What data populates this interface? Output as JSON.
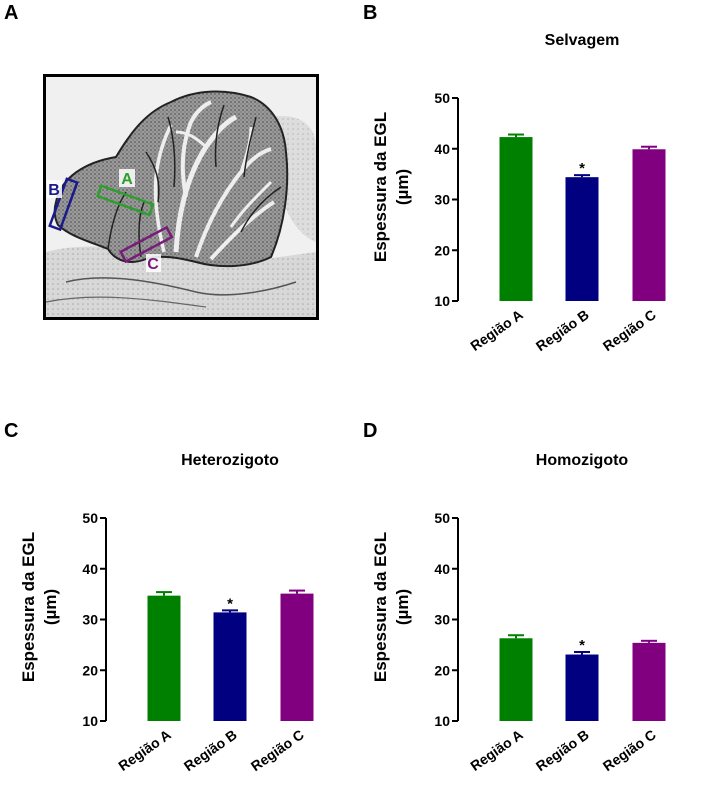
{
  "panels": {
    "a": "A",
    "b": "B",
    "c": "C",
    "d": "D"
  },
  "micrograph": {
    "box_labels": {
      "a": "A",
      "b": "B",
      "c": "C"
    },
    "colors": {
      "a": "#2e9e2e",
      "b": "#1a1a8c",
      "c": "#7a1a7a"
    }
  },
  "colors": {
    "regiao_a": "#008000",
    "regiao_b": "#000080",
    "regiao_c": "#800080"
  },
  "chart_data": [
    {
      "id": "B",
      "type": "bar",
      "title": "Selvagem",
      "ylabel_line1": "Espessura da EGL",
      "ylabel_line2": "(µm)",
      "categories": [
        "Região A",
        "Região B",
        "Região C"
      ],
      "values": [
        42.3,
        34.4,
        39.9
      ],
      "errors": [
        0.5,
        0.4,
        0.5
      ],
      "significance": [
        "",
        "*",
        ""
      ],
      "ylim": [
        10,
        50
      ],
      "yticks": [
        10,
        20,
        30,
        40,
        50
      ]
    },
    {
      "id": "C",
      "type": "bar",
      "title": "Heterozigoto",
      "ylabel_line1": "Espessura da EGL",
      "ylabel_line2": "(µm)",
      "categories": [
        "Região A",
        "Região B",
        "Região C"
      ],
      "values": [
        34.7,
        31.4,
        35.1
      ],
      "errors": [
        0.7,
        0.4,
        0.6
      ],
      "significance": [
        "",
        "*",
        ""
      ],
      "ylim": [
        10,
        50
      ],
      "yticks": [
        10,
        20,
        30,
        40,
        50
      ]
    },
    {
      "id": "D",
      "type": "bar",
      "title": "Homozigoto",
      "ylabel_line1": "Espessura da EGL",
      "ylabel_line2": "(µm)",
      "categories": [
        "Região A",
        "Região B",
        "Região C"
      ],
      "values": [
        26.3,
        23.1,
        25.4
      ],
      "errors": [
        0.6,
        0.5,
        0.4
      ],
      "significance": [
        "",
        "*",
        ""
      ],
      "ylim": [
        10,
        50
      ],
      "yticks": [
        10,
        20,
        30,
        40,
        50
      ]
    }
  ]
}
